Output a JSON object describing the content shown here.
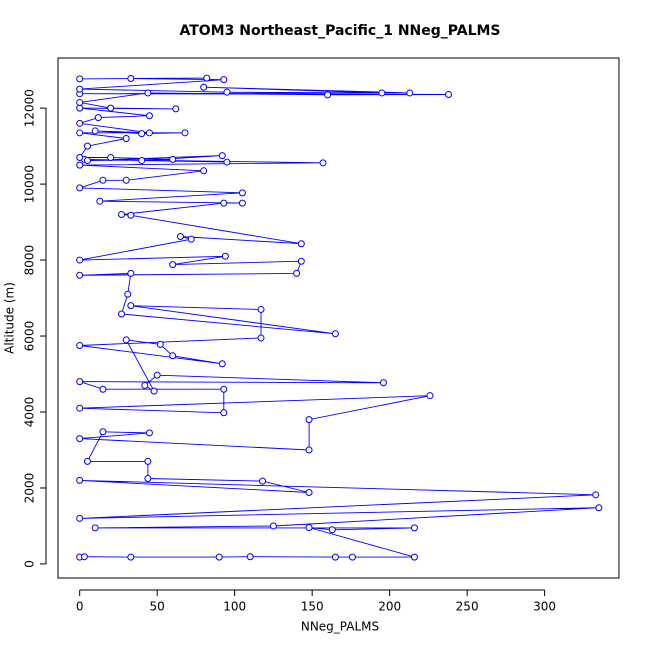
{
  "chart_data": {
    "type": "line",
    "title": "ATOM3 Northeast_Pacific_1 NNeg_PALMS",
    "x_label": "NNeg_PALMS",
    "y_label": "Altitude (m)",
    "color": "#0000ff",
    "markers": true,
    "xlim": [
      -14,
      348
    ],
    "ylim": [
      -370,
      13320
    ],
    "xticks": [
      0,
      50,
      100,
      150,
      200,
      250,
      300
    ],
    "yticks": [
      0,
      2000,
      4000,
      6000,
      8000,
      10000,
      12000
    ],
    "x": [
      0,
      3,
      33,
      90,
      110,
      165,
      176,
      216,
      148,
      163,
      216,
      10,
      125,
      335,
      0,
      333,
      0,
      148,
      118,
      44,
      44,
      5,
      15,
      45,
      0,
      148,
      148,
      226,
      0,
      93,
      93,
      15,
      0,
      196,
      50,
      42,
      48,
      30,
      52,
      60,
      92,
      0,
      117,
      117,
      33,
      165,
      27,
      31,
      33,
      0,
      140,
      143,
      60,
      94,
      0,
      72,
      65,
      143,
      33,
      27,
      93,
      105,
      13,
      105,
      0,
      15,
      30,
      80,
      0,
      157,
      3,
      95,
      40,
      92,
      5,
      60,
      20,
      0,
      5,
      30,
      0,
      68,
      40,
      10,
      45,
      0,
      12,
      45,
      0,
      62,
      20,
      0,
      44,
      160,
      238,
      0,
      213,
      80,
      195,
      95,
      0,
      93,
      33,
      82,
      0
    ],
    "values": [
      180,
      190,
      180,
      180,
      190,
      180,
      180,
      180,
      960,
      900,
      950,
      950,
      1000,
      1480,
      1200,
      1820,
      2200,
      1880,
      2180,
      2250,
      2700,
      2700,
      3480,
      3450,
      3300,
      3000,
      3800,
      4430,
      4100,
      3980,
      4600,
      4600,
      4800,
      4770,
      4970,
      4700,
      4550,
      5900,
      5780,
      5480,
      5270,
      5750,
      5950,
      6700,
      6800,
      6060,
      6580,
      7100,
      7650,
      7600,
      7650,
      7970,
      7880,
      8100,
      8000,
      8550,
      8620,
      8430,
      9180,
      9200,
      9500,
      9500,
      9550,
      9770,
      9900,
      10100,
      10100,
      10350,
      10500,
      10560,
      10650,
      10580,
      10620,
      10750,
      10620,
      10650,
      10700,
      10700,
      11000,
      11200,
      11350,
      11350,
      11330,
      11400,
      11350,
      11600,
      11750,
      11800,
      12000,
      11980,
      12000,
      12150,
      12400,
      12350,
      12360,
      12380,
      12400,
      12550,
      12400,
      12420,
      12500,
      12750,
      12780,
      12790,
      12770
    ]
  }
}
